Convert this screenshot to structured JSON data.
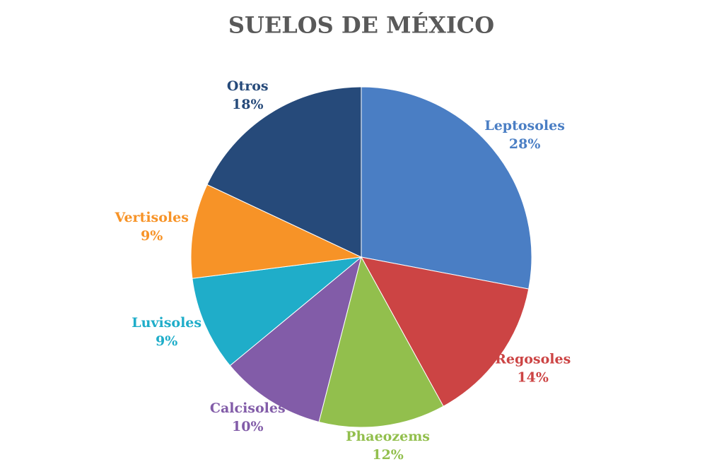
{
  "chart_data": {
    "type": "pie",
    "title": "SUELOS DE MÉXICO",
    "categories": [
      "Leptosoles",
      "Regosoles",
      "Phaeozems",
      "Calcisoles",
      "Luvisoles",
      "Vertisoles",
      "Otros"
    ],
    "values": [
      28,
      14,
      12,
      10,
      9,
      9,
      18
    ],
    "value_labels": [
      "28%",
      "14%",
      "12%",
      "10%",
      "9%",
      "9%",
      "18%"
    ],
    "colors": [
      "#4a7ec4",
      "#cc4444",
      "#92bf4d",
      "#825ca8",
      "#1fadc9",
      "#f79327",
      "#264a7a"
    ]
  }
}
